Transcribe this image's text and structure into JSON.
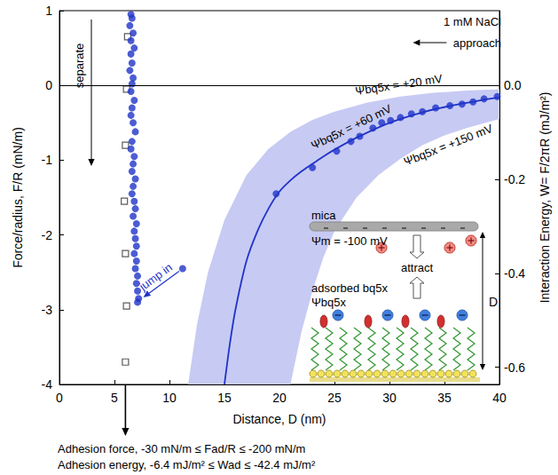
{
  "chart_data": {
    "type": "scatter",
    "x_label": "Distance, D (nm)",
    "y_label": "Force/radius, F/R (mN/m)",
    "y2_label": "Interaction Energy, W= F/2πR (mJ/m²)",
    "xlim": [
      0,
      40
    ],
    "xticks": [
      0,
      5,
      10,
      15,
      20,
      25,
      30,
      35,
      40
    ],
    "ylim": [
      -4,
      1
    ],
    "yticks": [
      -4,
      -3,
      -2,
      -1,
      0,
      1
    ],
    "y2lim": [
      -0.6366,
      0.1592
    ],
    "y2ticks": [
      {
        "value": 0,
        "label": "0.0"
      },
      -0.2,
      -0.4,
      -0.6
    ],
    "grid": false,
    "series": [
      {
        "type": "band",
        "color": "#c7caf3",
        "upper": {
          "label": "Ψbq5x = +20 mV",
          "x": [
            11.7,
            12.5,
            13.5,
            15,
            17,
            19,
            21,
            23,
            25,
            28,
            31,
            34,
            37,
            40
          ],
          "values": [
            -4,
            -3.2,
            -2.5,
            -1.8,
            -1.2,
            -0.85,
            -0.62,
            -0.46,
            -0.35,
            -0.23,
            -0.15,
            -0.1,
            -0.07,
            -0.05
          ]
        },
        "lower": {
          "label": "Ψbq5x = +150 mV",
          "x": [
            21,
            22,
            23,
            24,
            25,
            27,
            29,
            31,
            33,
            35,
            37,
            40
          ],
          "values": [
            -4,
            -3.3,
            -2.75,
            -2.3,
            -1.95,
            -1.5,
            -1.2,
            -0.98,
            -0.8,
            -0.67,
            -0.57,
            -0.45
          ]
        }
      },
      {
        "type": "line",
        "line_style": "solid",
        "color": "#1f33c8",
        "label": "Ψbq5x = +60 mV",
        "x": [
          15,
          15.5,
          16,
          17,
          18,
          19,
          20,
          21,
          22,
          23,
          24,
          25,
          27,
          30,
          33,
          36,
          40
        ],
        "values": [
          -4,
          -3.45,
          -3.0,
          -2.35,
          -1.95,
          -1.65,
          -1.42,
          -1.27,
          -1.15,
          -1.05,
          -0.95,
          -0.86,
          -0.7,
          -0.5,
          -0.36,
          -0.26,
          -0.16
        ]
      },
      {
        "type": "scatter",
        "marker": "open_square",
        "color": "#333333",
        "x": [
          6.2,
          6.1,
          6.0,
          5.9,
          6.0,
          6.1,
          6.0
        ],
        "values": [
          0.65,
          -0.05,
          -0.8,
          -1.55,
          -2.25,
          -2.95,
          -3.7
        ]
      },
      {
        "type": "scatter",
        "marker": "circle",
        "color": "#1f33c8",
        "x": [
          6.5,
          6.6,
          6.4,
          6.7,
          6.5,
          6.8,
          6.5,
          6.6,
          6.4,
          6.7,
          6.6,
          6.5,
          6.8,
          6.6,
          6.5,
          6.7,
          6.9,
          6.6,
          6.5,
          6.8,
          6.7,
          6.6,
          6.9,
          6.7,
          6.6,
          6.8,
          6.9,
          6.7,
          7.0,
          6.8,
          6.9,
          7.0,
          6.8,
          7.0,
          6.9,
          7.1,
          7.0,
          7.1,
          7.2,
          7.1,
          11.2,
          19.7,
          23.0,
          25.2,
          26.5,
          27.3,
          28.5,
          29.3,
          30.1,
          31.0,
          32.0,
          33.0,
          34.2,
          35.5,
          36.6,
          37.6,
          38.6,
          39.8
        ],
        "values": [
          0.95,
          0.9,
          0.8,
          0.7,
          0.6,
          0.5,
          0.42,
          0.3,
          0.2,
          0.1,
          0.02,
          -0.08,
          -0.2,
          -0.3,
          -0.4,
          -0.5,
          -0.62,
          -0.75,
          -0.85,
          -0.95,
          -1.05,
          -1.15,
          -1.25,
          -1.35,
          -1.45,
          -1.55,
          -1.65,
          -1.75,
          -1.85,
          -1.95,
          -2.05,
          -2.15,
          -2.25,
          -2.35,
          -2.45,
          -2.55,
          -2.65,
          -2.75,
          -2.85,
          -2.9,
          -2.45,
          -1.45,
          -1.1,
          -0.88,
          -0.75,
          -0.68,
          -0.57,
          -0.5,
          -0.47,
          -0.43,
          -0.38,
          -0.35,
          -0.3,
          -0.27,
          -0.25,
          -0.22,
          -0.18,
          -0.15
        ]
      }
    ],
    "annotations": {
      "salt": "1 mM NaCl",
      "approach": "approach",
      "separate": "separate",
      "jump_in": {
        "text": "jump in",
        "from": [
          11.2,
          -2.45
        ],
        "to": [
          7.3,
          -2.87
        ]
      }
    },
    "inset": {
      "mica": "mica",
      "mica_potential": "Ψm = -100 mV",
      "attract": "attract",
      "layer": "adsorbed bq5x",
      "layer_potential": "Ψbq5x",
      "distance": "D"
    },
    "notes": [
      "Adhesion force, -30 mN/m ≤ Fad/R ≤ -200 mN/m",
      "Adhesion energy, -6.4 mJ/m² ≤ Wad ≤ -42.4 mJ/m²"
    ]
  }
}
